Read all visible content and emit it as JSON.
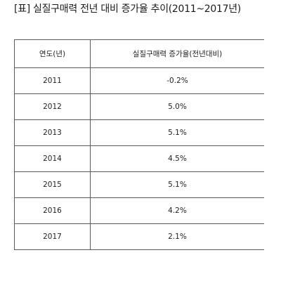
{
  "title": "[표] 실질구매력 전년 대비 증가율 추이(2011~2017년)",
  "table": {
    "headers": [
      "연도(년)",
      "실질구매력 증가율(전년대비)"
    ],
    "rows": [
      [
        "2011",
        "-0.2%"
      ],
      [
        "2012",
        "5.0%"
      ],
      [
        "2013",
        "5.1%"
      ],
      [
        "2014",
        "4.5%"
      ],
      [
        "2015",
        "5.1%"
      ],
      [
        "2016",
        "4.2%"
      ],
      [
        "2017",
        "2.1%"
      ]
    ]
  }
}
